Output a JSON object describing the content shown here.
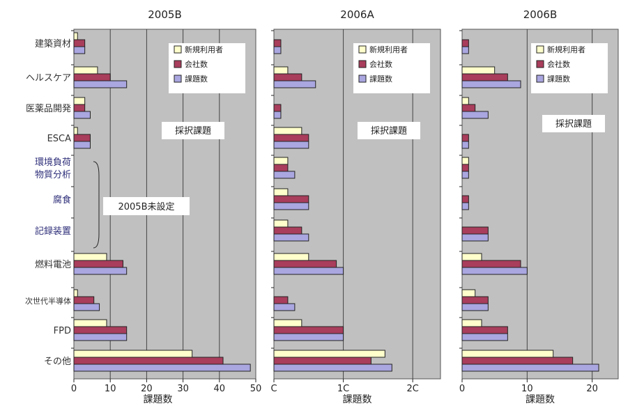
{
  "chart_data": {
    "type": "bar",
    "orientation": "horizontal",
    "xlabel": "課題数",
    "categories": [
      "建築資材",
      "ヘルスケア",
      "医薬品開発",
      "ESCA",
      "環境負荷物質分析",
      "腐食",
      "記録装置",
      "燃料電池",
      "次世代半導体",
      "FPD",
      "その他"
    ],
    "category_display": [
      [
        "建築資材"
      ],
      [
        "ヘルスケア"
      ],
      [
        "医薬品開発"
      ],
      [
        "ESCA"
      ],
      [
        "環境負荷",
        "物質分析"
      ],
      [
        "腐食"
      ],
      [
        "記録装置"
      ],
      [
        "燃料電池"
      ],
      [
        "次世代半導体"
      ],
      [
        "FPD"
      ],
      [
        "その他"
      ]
    ],
    "series_names": [
      "新規利用者",
      "会社数",
      "課題数"
    ],
    "colors": {
      "新規利用者": "#ffffcc",
      "会社数": "#a93d5c",
      "課題数": "#a9a6e0",
      "plot_bg": "#c0c0c0",
      "category_label_default": "#333333",
      "category_label_new": "#2e2e7a"
    },
    "new_category_indices": [
      4,
      5,
      6
    ],
    "legend_position": "top-right",
    "grid": true,
    "panels": [
      {
        "title": "2005B",
        "xlim": [
          0,
          50
        ],
        "xticks": [
          "0",
          "10",
          "20",
          "30",
          "40",
          "50"
        ],
        "annotation": "採択課題",
        "bracket_label": "2005B未設定",
        "series": [
          {
            "name": "新規利用者",
            "values": [
              1,
              6.5,
              3,
              1,
              null,
              null,
              null,
              9,
              1,
              9,
              32.5
            ]
          },
          {
            "name": "会社数",
            "values": [
              3,
              10,
              3,
              4.5,
              null,
              null,
              null,
              13.5,
              5.5,
              14.5,
              41
            ]
          },
          {
            "name": "課題数",
            "values": [
              3,
              14.5,
              4.5,
              4.5,
              null,
              null,
              null,
              14.5,
              7,
              14.5,
              48.5
            ]
          }
        ]
      },
      {
        "title": "2006A",
        "xlim": [
          0,
          24
        ],
        "xticks": [
          "C",
          "1C",
          "2C"
        ],
        "xtick_values": [
          0,
          10,
          20
        ],
        "annotation": "採択課題",
        "series": [
          {
            "name": "新規利用者",
            "values": [
              0,
              2,
              0,
              4,
              2,
              2,
              2,
              5,
              0,
              4,
              16
            ]
          },
          {
            "name": "会社数",
            "values": [
              1,
              4,
              1,
              5,
              2,
              5,
              4,
              9,
              2,
              10,
              14
            ]
          },
          {
            "name": "課題数",
            "values": [
              1,
              6,
              1,
              5,
              3,
              5,
              5,
              10,
              3,
              10,
              17
            ]
          }
        ]
      },
      {
        "title": "2006B",
        "xlim": [
          0,
          24
        ],
        "xticks": [
          "0",
          "10",
          "20"
        ],
        "annotation": "採択課題",
        "series": [
          {
            "name": "新規利用者",
            "values": [
              0,
              5,
              1,
              0,
              1,
              0,
              0,
              3,
              2,
              3,
              14
            ]
          },
          {
            "name": "会社数",
            "values": [
              1,
              7,
              2,
              1,
              1,
              1,
              4,
              9,
              4,
              7,
              17
            ]
          },
          {
            "name": "課題数",
            "values": [
              1,
              9,
              4,
              1,
              1,
              1,
              4,
              10,
              4,
              7,
              21
            ]
          }
        ]
      }
    ]
  }
}
